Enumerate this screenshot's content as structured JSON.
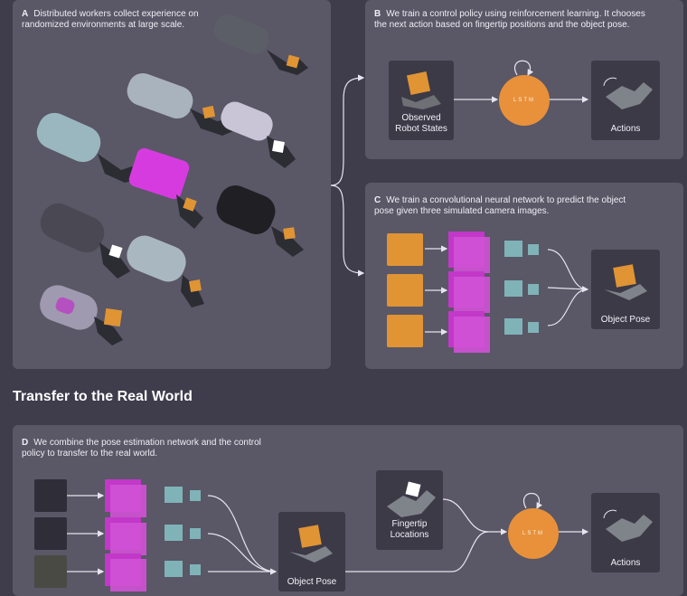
{
  "panel_a": {
    "letter": "A",
    "text": "Distributed workers collect experience on randomized environments at large scale."
  },
  "panel_b": {
    "letter": "B",
    "text": "We train a control policy using reinforcement learning. It chooses the next action based on fingertip positions and the object pose.",
    "input_caption": "Observed Robot States",
    "lstm_label": "LSTM",
    "output_caption": "Actions"
  },
  "panel_c": {
    "letter": "C",
    "text": "We train a convolutional neural network to predict the object pose given three simulated camera images.",
    "output_caption": "Object Pose"
  },
  "section_title": "Transfer to the Real World",
  "panel_d": {
    "letter": "D",
    "text": "We combine the pose estimation network and the control policy to transfer to the real world.",
    "pose_caption": "Object Pose",
    "fingertip_caption": "Fingertip Locations",
    "lstm_label": "LSTM",
    "output_caption": "Actions"
  },
  "colors": {
    "background": "#3f3c4c",
    "panel": "#5a5766",
    "lstm": "#e8913a",
    "cnn_block": "#c238c8",
    "cnn_layer": "#7fb3b8",
    "arrow": "#e6e4ee"
  },
  "icons": {
    "robot_hand": "robot-hand-icon",
    "cube": "cube-icon"
  }
}
